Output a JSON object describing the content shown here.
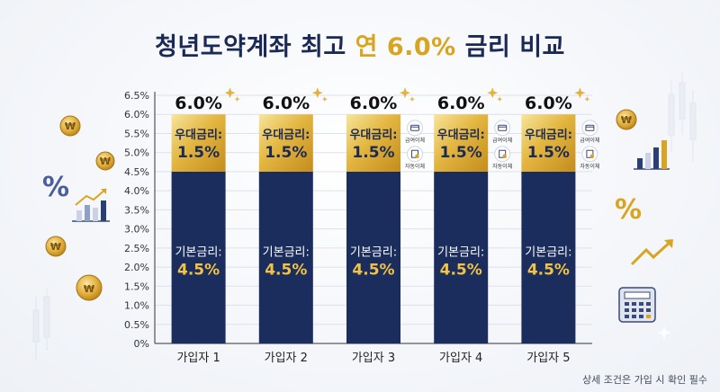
{
  "title": {
    "prefix": "청년도약계좌 최고",
    "highlight": "연 6.0%",
    "suffix": "금리 비교"
  },
  "note": "상세 조건은 가입 시 확인 필수",
  "icons": {
    "coin_symbol": "₩",
    "percent_symbol": "%"
  },
  "colors": {
    "base_bar": "#1a2d5c",
    "bonus_gold_light": "#f6dd8a",
    "bonus_gold_dark": "#c99320",
    "accent_gold": "#d9a521",
    "title": "#1b2a55"
  },
  "chart_data": {
    "type": "bar",
    "stacked": true,
    "categories": [
      "가입자 1",
      "가입자 2",
      "가입자 3",
      "가입자 4",
      "가입자 5"
    ],
    "yticks": [
      "0%",
      "0.5%",
      "1.0%",
      "1.5%",
      "2.0%",
      "2.5%",
      "3.0%",
      "3.5%",
      "4.0%",
      "4.5%",
      "5.0%",
      "5.5%",
      "6.0%",
      "6.5%"
    ],
    "ylim": [
      0,
      6.5
    ],
    "grid": true,
    "totals": [
      "6.0%",
      "6.0%",
      "6.0%",
      "6.0%",
      "6.0%"
    ],
    "series": [
      {
        "label": "기본금리:",
        "value_label": "4.5%",
        "values": [
          4.5,
          4.5,
          4.5,
          4.5,
          4.5
        ]
      },
      {
        "label": "우대금리:",
        "value_label": "1.5%",
        "values": [
          1.5,
          1.5,
          1.5,
          1.5,
          1.5
        ]
      }
    ],
    "badges": [
      [],
      [],
      [
        "급여이체",
        "자동이체"
      ],
      [
        "급여이체",
        "자동이체"
      ],
      [
        "급여이체",
        "자동이체"
      ]
    ]
  }
}
